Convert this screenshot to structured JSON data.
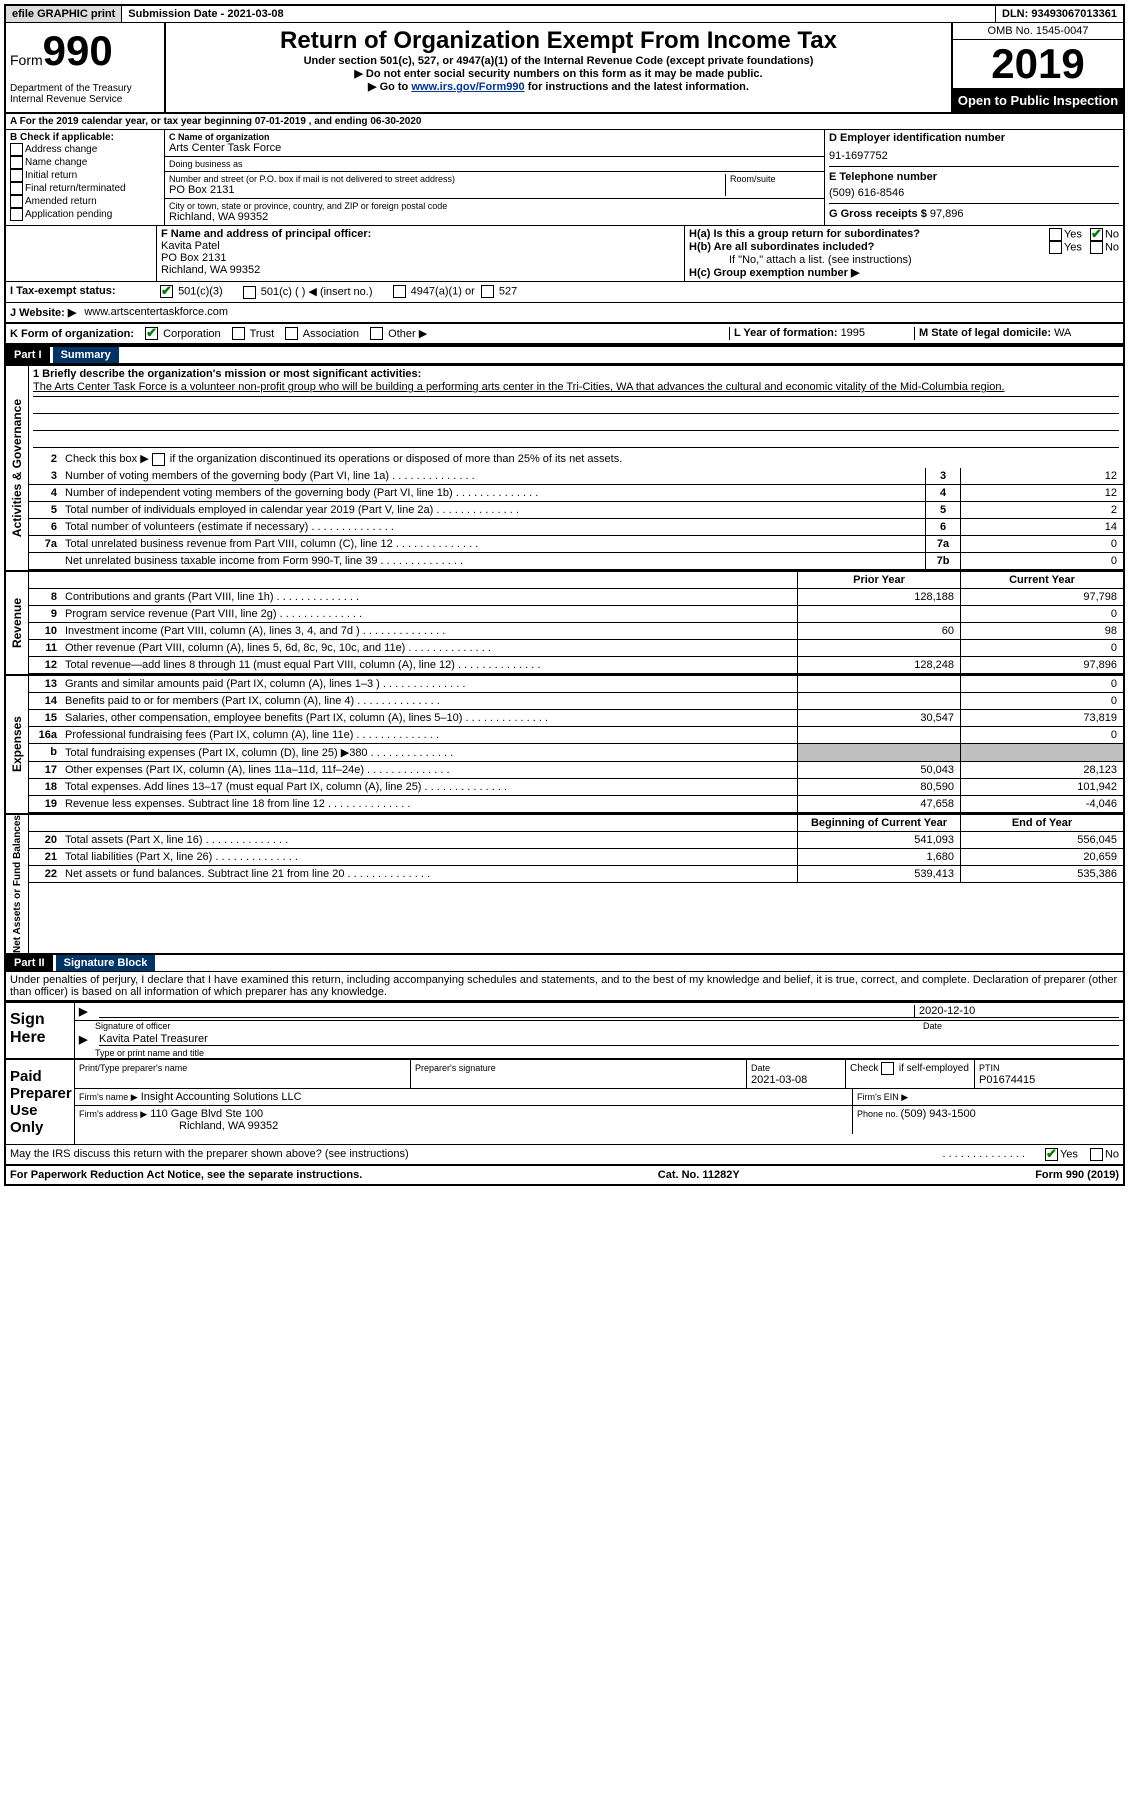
{
  "topbar": {
    "efile": "efile GRAPHIC print",
    "submission_label": "Submission Date - ",
    "submission_date": "2021-03-08",
    "dln_label": "DLN: ",
    "dln": "93493067013361"
  },
  "header": {
    "form_label": "Form",
    "form_num": "990",
    "dept": "Department of the Treasury\nInternal Revenue Service",
    "title": "Return of Organization Exempt From Income Tax",
    "subtitle": "Under section 501(c), 527, or 4947(a)(1) of the Internal Revenue Code (except private foundations)",
    "ssn_note": "▶ Do not enter social security numbers on this form as it may be made public.",
    "goto_pre": "▶ Go to ",
    "goto_link": "www.irs.gov/Form990",
    "goto_post": " for instructions and the latest information.",
    "omb": "OMB No. 1545-0047",
    "year": "2019",
    "open": "Open to Public Inspection"
  },
  "sectionA": "A For the 2019 calendar year, or tax year beginning 07-01-2019   , and ending 06-30-2020",
  "sectionB": {
    "label": "B Check if applicable:",
    "items": [
      "Address change",
      "Name change",
      "Initial return",
      "Final return/terminated",
      "Amended return",
      "Application pending"
    ]
  },
  "sectionC": {
    "name_label": "C Name of organization",
    "name": "Arts Center Task Force",
    "dba_label": "Doing business as",
    "addr_label": "Number and street (or P.O. box if mail is not delivered to street address)",
    "room_label": "Room/suite",
    "addr": "PO Box 2131",
    "city_label": "City or town, state or province, country, and ZIP or foreign postal code",
    "city": "Richland, WA  99352"
  },
  "sectionD": {
    "label": "D Employer identification number",
    "ein": "91-1697752"
  },
  "sectionE": {
    "label": "E Telephone number",
    "phone": "(509) 616-8546"
  },
  "sectionG": {
    "label": "G Gross receipts $ ",
    "amount": "97,896"
  },
  "sectionF": {
    "label": "F  Name and address of principal officer:",
    "name": "Kavita Patel",
    "addr1": "PO Box 2131",
    "addr2": "Richland, WA  99352"
  },
  "sectionH": {
    "a_label": "H(a)  Is this a group return for subordinates?",
    "b_label": "H(b)  Are all subordinates included?",
    "b_note": "If \"No,\" attach a list. (see instructions)",
    "c_label": "H(c)  Group exemption number ▶",
    "yes": "Yes",
    "no": "No"
  },
  "sectionI": {
    "label": "I    Tax-exempt status:",
    "opt1": "501(c)(3)",
    "opt2": "501(c) (  ) ◀ (insert no.)",
    "opt3": "4947(a)(1) or",
    "opt4": "527"
  },
  "sectionJ": {
    "label": "J    Website: ▶",
    "url": "www.artscentertaskforce.com"
  },
  "sectionK": {
    "label": "K Form of organization:",
    "opts": [
      "Corporation",
      "Trust",
      "Association",
      "Other ▶"
    ]
  },
  "sectionL": {
    "label": "L Year of formation: ",
    "val": "1995"
  },
  "sectionM": {
    "label": "M State of legal domicile: ",
    "val": "WA"
  },
  "part1": {
    "header": "Part I",
    "title": "Summary",
    "line1_label": "1  Briefly describe the organization's mission or most significant activities:",
    "mission": "The Arts Center Task Force is a volunteer non-profit group who will be building a performing arts center in the Tri-Cities, WA that advances the cultural and economic vitality of the Mid-Columbia region.",
    "line2": "2   Check this box ▶       if the organization discontinued its operations or disposed of more than 25% of its net assets.",
    "governance_label": "Activities & Governance",
    "revenue_label": "Revenue",
    "expenses_label": "Expenses",
    "netassets_label": "Net Assets or Fund Balances",
    "lines_gov": [
      {
        "n": "3",
        "t": "Number of voting members of the governing body (Part VI, line 1a)",
        "box": "3",
        "v": "12"
      },
      {
        "n": "4",
        "t": "Number of independent voting members of the governing body (Part VI, line 1b)",
        "box": "4",
        "v": "12"
      },
      {
        "n": "5",
        "t": "Total number of individuals employed in calendar year 2019 (Part V, line 2a)",
        "box": "5",
        "v": "2"
      },
      {
        "n": "6",
        "t": "Total number of volunteers (estimate if necessary)",
        "box": "6",
        "v": "14"
      },
      {
        "n": "7a",
        "t": "Total unrelated business revenue from Part VIII, column (C), line 12",
        "box": "7a",
        "v": "0"
      },
      {
        "n": "",
        "t": "Net unrelated business taxable income from Form 990-T, line 39",
        "box": "7b",
        "v": "0"
      }
    ],
    "col_prior": "Prior Year",
    "col_current": "Current Year",
    "lines_rev": [
      {
        "n": "8",
        "t": "Contributions and grants (Part VIII, line 1h)",
        "p": "128,188",
        "c": "97,798"
      },
      {
        "n": "9",
        "t": "Program service revenue (Part VIII, line 2g)",
        "p": "",
        "c": "0"
      },
      {
        "n": "10",
        "t": "Investment income (Part VIII, column (A), lines 3, 4, and 7d )",
        "p": "60",
        "c": "98"
      },
      {
        "n": "11",
        "t": "Other revenue (Part VIII, column (A), lines 5, 6d, 8c, 9c, 10c, and 11e)",
        "p": "",
        "c": "0"
      },
      {
        "n": "12",
        "t": "Total revenue—add lines 8 through 11 (must equal Part VIII, column (A), line 12)",
        "p": "128,248",
        "c": "97,896"
      }
    ],
    "lines_exp": [
      {
        "n": "13",
        "t": "Grants and similar amounts paid (Part IX, column (A), lines 1–3 )",
        "p": "",
        "c": "0"
      },
      {
        "n": "14",
        "t": "Benefits paid to or for members (Part IX, column (A), line 4)",
        "p": "",
        "c": "0"
      },
      {
        "n": "15",
        "t": "Salaries, other compensation, employee benefits (Part IX, column (A), lines 5–10)",
        "p": "30,547",
        "c": "73,819"
      },
      {
        "n": "16a",
        "t": "Professional fundraising fees (Part IX, column (A), line 11e)",
        "p": "",
        "c": "0"
      },
      {
        "n": "b",
        "t": "Total fundraising expenses (Part IX, column (D), line 25) ▶380",
        "p": "SHADED",
        "c": "SHADED"
      },
      {
        "n": "17",
        "t": "Other expenses (Part IX, column (A), lines 11a–11d, 11f–24e)",
        "p": "50,043",
        "c": "28,123"
      },
      {
        "n": "18",
        "t": "Total expenses. Add lines 13–17 (must equal Part IX, column (A), line 25)",
        "p": "80,590",
        "c": "101,942"
      },
      {
        "n": "19",
        "t": "Revenue less expenses. Subtract line 18 from line 12",
        "p": "47,658",
        "c": "-4,046"
      }
    ],
    "col_begin": "Beginning of Current Year",
    "col_end": "End of Year",
    "lines_net": [
      {
        "n": "20",
        "t": "Total assets (Part X, line 16)",
        "p": "541,093",
        "c": "556,045"
      },
      {
        "n": "21",
        "t": "Total liabilities (Part X, line 26)",
        "p": "1,680",
        "c": "20,659"
      },
      {
        "n": "22",
        "t": "Net assets or fund balances. Subtract line 21 from line 20",
        "p": "539,413",
        "c": "535,386"
      }
    ]
  },
  "part2": {
    "header": "Part II",
    "title": "Signature Block",
    "decl": "Under penalties of perjury, I declare that I have examined this return, including accompanying schedules and statements, and to the best of my knowledge and belief, it is true, correct, and complete. Declaration of preparer (other than officer) is based on all information of which preparer has any knowledge.",
    "sign_here": "Sign Here",
    "sig_label": "Signature of officer",
    "date_label": "Date",
    "sig_date": "2020-12-10",
    "name_title": "Kavita Patel  Treasurer",
    "type_label": "Type or print name and title",
    "paid": "Paid Preparer Use Only",
    "prep_name_label": "Print/Type preparer's name",
    "prep_sig_label": "Preparer's signature",
    "prep_date_label": "Date",
    "prep_date": "2021-03-08",
    "check_self": "Check       if self-employed",
    "ptin_label": "PTIN",
    "ptin": "P01674415",
    "firm_name_label": "Firm's name    ▶",
    "firm_name": "Insight Accounting Solutions LLC",
    "firm_ein_label": "Firm's EIN ▶",
    "firm_addr_label": "Firm's address ▶",
    "firm_addr1": "110 Gage Blvd Ste 100",
    "firm_addr2": "Richland, WA  99352",
    "firm_phone_label": "Phone no. ",
    "firm_phone": "(509) 943-1500",
    "discuss": "May the IRS discuss this return with the preparer shown above? (see instructions)",
    "yes": "Yes",
    "no": "No"
  },
  "footer": {
    "left": "For Paperwork Reduction Act Notice, see the separate instructions.",
    "mid": "Cat. No. 11282Y",
    "right": "Form 990 (2019)"
  }
}
